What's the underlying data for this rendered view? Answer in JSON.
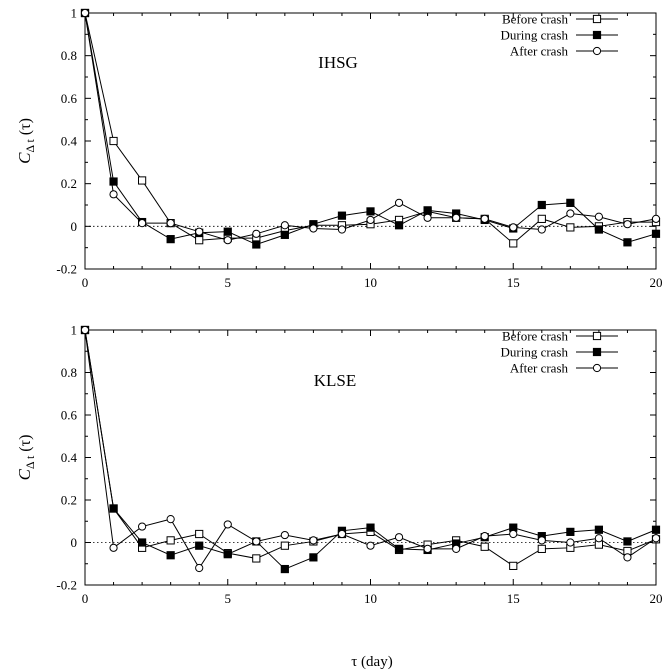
{
  "chart_data": [
    {
      "type": "line",
      "title": "IHSG",
      "ylabel_main": "C",
      "ylabel_sub": "Δ t",
      "ylabel_arg": " (τ)",
      "xlabel": "",
      "xlim": [
        0,
        20
      ],
      "ylim": [
        -0.2,
        1
      ],
      "x_ticks": [
        "0",
        "5",
        "10",
        "15",
        "20"
      ],
      "y_ticks": [
        "-0.2",
        "0",
        "0.2",
        "0.4",
        "0.6",
        "0.8",
        "1"
      ],
      "zero_line": true,
      "legend_position": "top-right",
      "x": [
        0,
        1,
        2,
        3,
        4,
        5,
        6,
        7,
        8,
        9,
        10,
        11,
        12,
        13,
        14,
        15,
        16,
        17,
        18,
        19,
        20
      ],
      "series": [
        {
          "name": "Before crash",
          "marker": "open-square",
          "values": [
            1,
            0.4,
            0.215,
            0.015,
            -0.065,
            -0.055,
            -0.055,
            -0.02,
            0.005,
            0.005,
            0.01,
            0.03,
            0.07,
            0.04,
            0.035,
            -0.08,
            0.035,
            -0.005,
            0.0,
            0.02,
            0.02
          ]
        },
        {
          "name": "During crash",
          "marker": "filled-square",
          "values": [
            1,
            0.21,
            0.02,
            -0.06,
            -0.03,
            -0.025,
            -0.085,
            -0.04,
            0.01,
            0.05,
            0.07,
            0.005,
            0.075,
            0.06,
            0.03,
            -0.01,
            0.1,
            0.11,
            -0.015,
            -0.075,
            -0.035
          ]
        },
        {
          "name": "After crash",
          "marker": "open-circle",
          "values": [
            1,
            0.15,
            0.015,
            0.015,
            -0.025,
            -0.065,
            -0.035,
            0.005,
            -0.01,
            -0.015,
            0.03,
            0.11,
            0.04,
            0.04,
            0.035,
            -0.005,
            -0.015,
            0.06,
            0.045,
            0.01,
            0.035
          ]
        }
      ]
    },
    {
      "type": "line",
      "title": "KLSE",
      "ylabel_main": "C",
      "ylabel_sub": "Δ t",
      "ylabel_arg": " (τ)",
      "xlabel": "τ (day)",
      "xlim": [
        0,
        20
      ],
      "ylim": [
        -0.2,
        1
      ],
      "x_ticks": [
        "0",
        "5",
        "10",
        "15",
        "20"
      ],
      "y_ticks": [
        "-0.2",
        "0",
        "0.2",
        "0.4",
        "0.6",
        "0.8",
        "1"
      ],
      "zero_line": true,
      "legend_position": "top-right",
      "x": [
        0,
        1,
        2,
        3,
        4,
        5,
        6,
        7,
        8,
        9,
        10,
        11,
        12,
        13,
        14,
        15,
        16,
        17,
        18,
        19,
        20
      ],
      "series": [
        {
          "name": "Before crash",
          "marker": "open-square",
          "values": [
            1,
            0.16,
            -0.025,
            0.01,
            0.04,
            -0.05,
            -0.075,
            -0.015,
            0.005,
            0.04,
            0.05,
            -0.035,
            -0.01,
            0.01,
            -0.02,
            -0.11,
            -0.03,
            -0.025,
            -0.01,
            -0.04,
            0.015
          ]
        },
        {
          "name": "During crash",
          "marker": "filled-square",
          "values": [
            1,
            0.16,
            0.0,
            -0.06,
            -0.015,
            -0.055,
            0.005,
            -0.125,
            -0.07,
            0.055,
            0.07,
            -0.03,
            -0.035,
            -0.005,
            0.025,
            0.07,
            0.03,
            0.05,
            0.06,
            0.005,
            0.06
          ]
        },
        {
          "name": "After crash",
          "marker": "open-circle",
          "values": [
            1,
            -0.025,
            0.075,
            0.11,
            -0.12,
            0.085,
            0.005,
            0.035,
            0.01,
            0.04,
            -0.015,
            0.025,
            -0.03,
            -0.03,
            0.03,
            0.04,
            0.01,
            0.0,
            0.02,
            -0.07,
            0.02
          ]
        }
      ]
    }
  ]
}
